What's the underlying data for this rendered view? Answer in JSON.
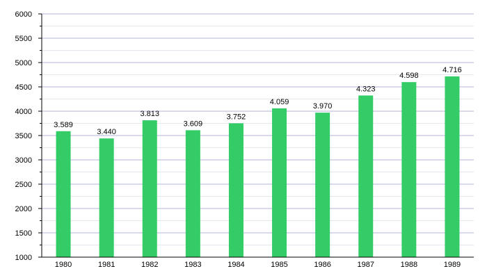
{
  "chart_data": {
    "type": "bar",
    "title": "",
    "xlabel": "",
    "ylabel": "",
    "categories": [
      "1980",
      "1981",
      "1982",
      "1983",
      "1984",
      "1985",
      "1986",
      "1987",
      "1988",
      "1989"
    ],
    "values": [
      3589,
      3440,
      3813,
      3609,
      3752,
      4059,
      3970,
      4323,
      4598,
      4716
    ],
    "value_labels": [
      "3.589",
      "3.440",
      "3.813",
      "3.609",
      "3.752",
      "4.059",
      "3.970",
      "4.323",
      "4.598",
      "4.716"
    ],
    "ylim": [
      1000,
      6000
    ],
    "yticks": [
      1000,
      1500,
      2000,
      2500,
      3000,
      3500,
      4000,
      4500,
      5000,
      5500,
      6000
    ],
    "ytick_labels": [
      "1000",
      "1500",
      "2000",
      "2500",
      "3000",
      "3500",
      "4000",
      "4500",
      "5000",
      "5500",
      "6000"
    ],
    "grid": true,
    "legend": "none",
    "colors": {
      "bar": "#33cc66",
      "grid_major": "#b3b3d9",
      "grid_minor": "#e6e6ee",
      "axis": "#000000"
    }
  }
}
